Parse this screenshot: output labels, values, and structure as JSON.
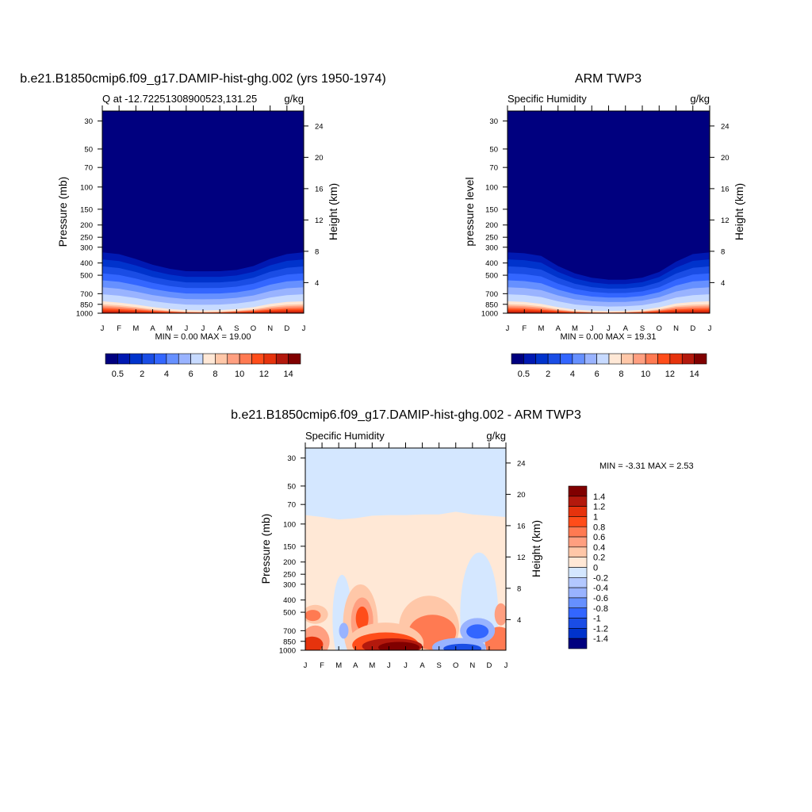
{
  "colors": {
    "palette": [
      "#00007f",
      "#0019b2",
      "#0033cc",
      "#1a4de5",
      "#3366ff",
      "#6690ff",
      "#99b3ff",
      "#c7daff",
      "#ffe8d6",
      "#ffc7a8",
      "#ff9f80",
      "#ff7a52",
      "#ff4d1a",
      "#e6330d",
      "#b3190d",
      "#800000"
    ]
  },
  "panels": [
    {
      "title": "b.e21.B1850cmip6.f09_g17.DAMIP-hist-ghg.002 (yrs 1950-1974)",
      "left_label": "Q at -12.72251308900523,131.25",
      "right_label": "g/kg",
      "ylabel": "Pressure (mb)",
      "ylabel2": "Height (km)",
      "minmax": "MIN =   0.00 MAX =  19.00"
    },
    {
      "title": "ARM TWP3",
      "left_label": "Specific Humidity",
      "right_label": "g/kg",
      "ylabel": "pressure level",
      "ylabel2": "Height (km)",
      "minmax": "MIN =   0.00 MAX = 19.31"
    },
    {
      "title": "b.e21.B1850cmip6.f09_g17.DAMIP-hist-ghg.002 - ARM TWP3",
      "left_label": "Specific Humidity",
      "right_label": "g/kg",
      "ylabel": "Pressure (mb)",
      "ylabel2": "Height (km)",
      "minmax": "MIN =  -3.31 MAX =   2.53"
    }
  ],
  "chart_data": [
    {
      "type": "heatmap",
      "x_ticks": [
        "J",
        "F",
        "M",
        "A",
        "M",
        "J",
        "J",
        "A",
        "S",
        "O",
        "N",
        "D",
        "J"
      ],
      "y_ticks": [
        30,
        50,
        70,
        100,
        150,
        200,
        250,
        300,
        400,
        500,
        700,
        850,
        1000
      ],
      "y2_ticks": [
        24,
        20,
        16,
        12,
        8,
        4
      ],
      "ylim": [
        1000,
        25
      ],
      "y_scale": "log",
      "colorbar_labels": [
        "0.5",
        "2",
        "4",
        "6",
        "8",
        "10",
        "12",
        "14"
      ],
      "dry_top_pressure": [
        290,
        300,
        330,
        370,
        400,
        420,
        420,
        420,
        410,
        380,
        330,
        300,
        290
      ],
      "moist_layer_pressure": [
        830,
        850,
        880,
        920,
        950,
        970,
        975,
        970,
        950,
        920,
        870,
        840,
        830
      ]
    },
    {
      "type": "heatmap",
      "x_ticks": [
        "J",
        "F",
        "M",
        "A",
        "M",
        "J",
        "J",
        "A",
        "S",
        "O",
        "N",
        "D",
        "J"
      ],
      "y_ticks": [
        30,
        50,
        70,
        100,
        150,
        200,
        250,
        300,
        400,
        500,
        700,
        850,
        1000
      ],
      "y2_ticks": [
        24,
        20,
        16,
        12,
        8,
        4
      ],
      "ylim": [
        1000,
        25
      ],
      "y_scale": "log",
      "colorbar_labels": [
        "0.5",
        "2",
        "4",
        "6",
        "8",
        "10",
        "12",
        "14"
      ],
      "dry_top_pressure": [
        290,
        295,
        310,
        380,
        440,
        480,
        500,
        500,
        480,
        430,
        350,
        300,
        290
      ],
      "moist_layer_pressure": [
        830,
        840,
        870,
        920,
        960,
        975,
        980,
        975,
        960,
        920,
        860,
        840,
        830
      ]
    },
    {
      "type": "heatmap",
      "x_ticks": [
        "J",
        "F",
        "M",
        "A",
        "M",
        "J",
        "J",
        "A",
        "S",
        "O",
        "N",
        "D",
        "J"
      ],
      "y_ticks": [
        30,
        50,
        70,
        100,
        150,
        200,
        250,
        300,
        400,
        500,
        700,
        850,
        1000
      ],
      "y2_ticks": [
        24,
        20,
        16,
        12,
        8,
        4
      ],
      "ylim": [
        1000,
        25
      ],
      "y_scale": "log",
      "colorbar_labels": [
        "1.4",
        "1.2",
        "1",
        "0.8",
        "0.6",
        "0.4",
        "0.2",
        "0",
        "-0.2",
        "-0.4",
        "-0.6",
        "-0.8",
        "-1",
        "-1.2",
        "-1.4"
      ],
      "colorbar_colors": [
        "#800000",
        "#b3190d",
        "#e6330d",
        "#ff4d1a",
        "#ff7a52",
        "#ff9f80",
        "#ffc7a8",
        "#ffe8d6",
        "#d4e7ff",
        "#b3c8ff",
        "#99b3ff",
        "#6690ff",
        "#3366ff",
        "#1a4de5",
        "#0033cc",
        "#00007f"
      ],
      "zero_boundary_pressure": [
        85,
        88,
        92,
        90,
        86,
        85,
        85,
        84,
        84,
        80,
        84,
        86,
        88
      ]
    }
  ]
}
